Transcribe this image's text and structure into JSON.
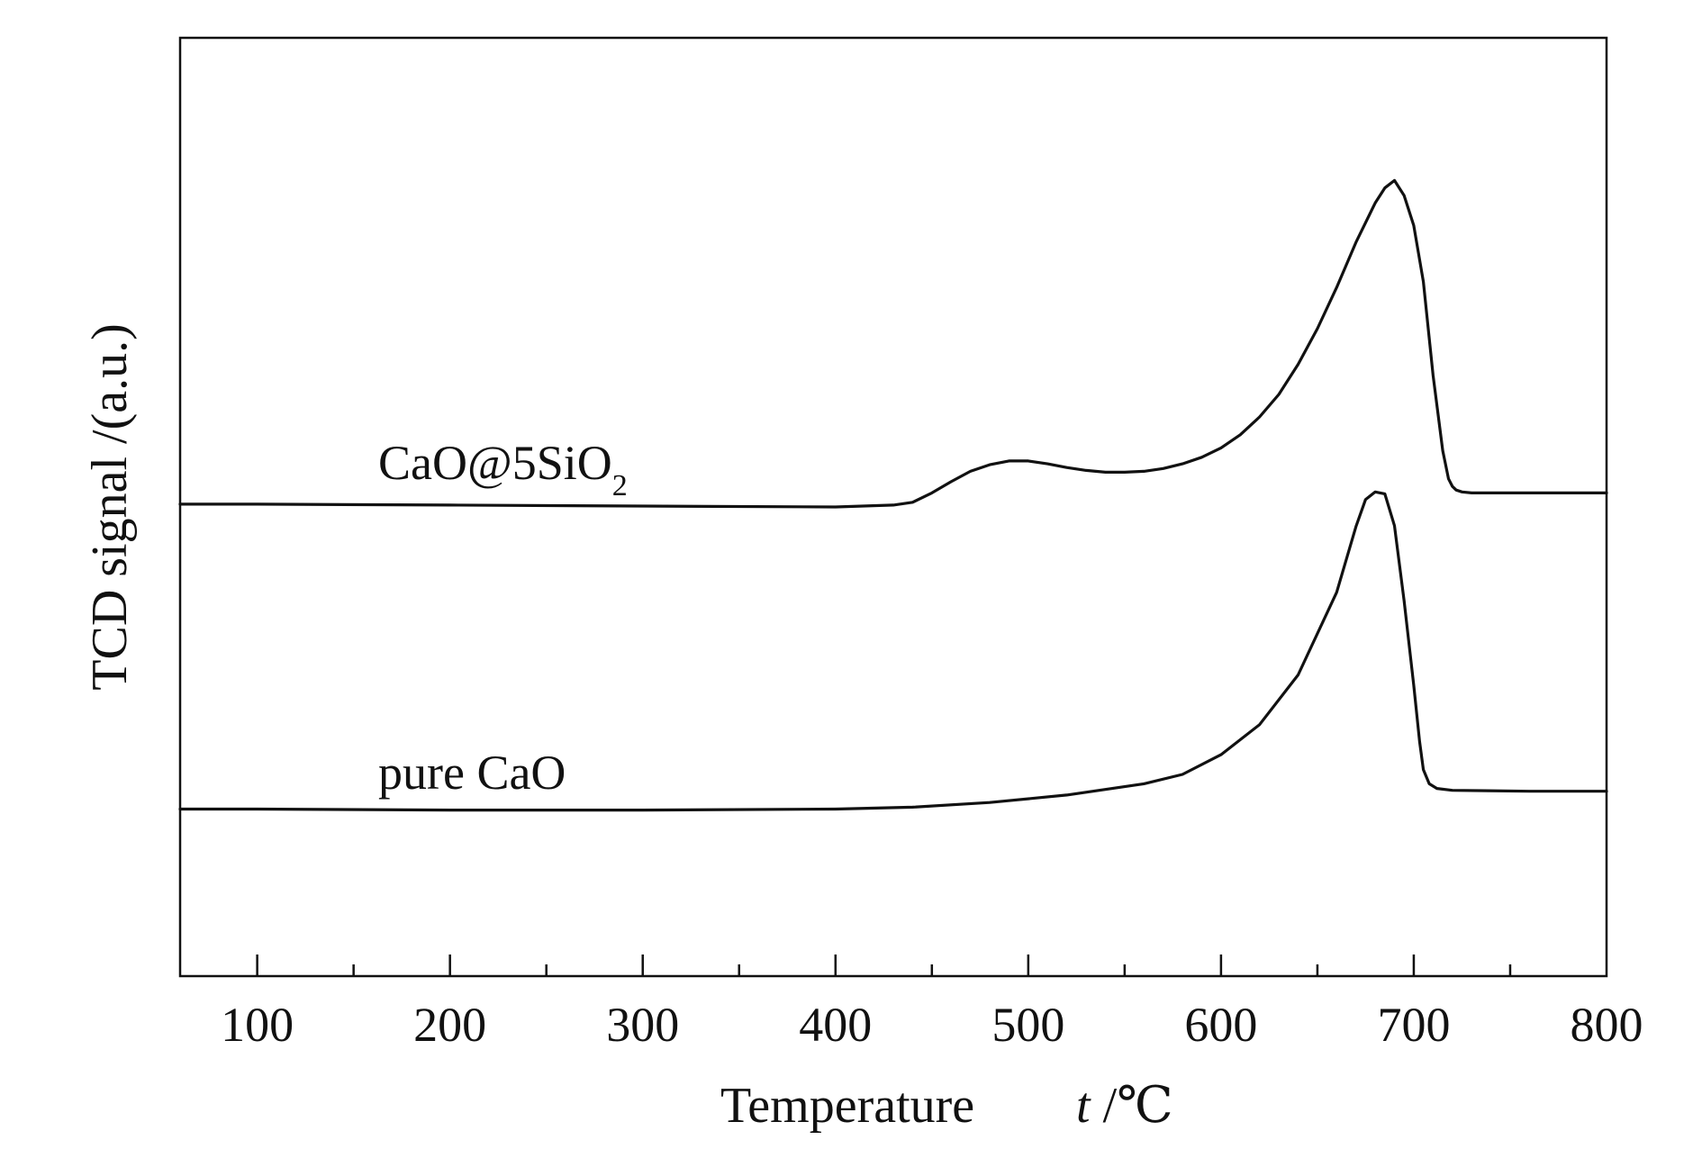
{
  "chart_data": {
    "type": "line",
    "xlabel": "Temperature",
    "xlabel_symbol": "t",
    "xlabel_unit": " /℃",
    "ylabel": "TCD signal /(a.u.)",
    "xlim": [
      60,
      800
    ],
    "ylim": [
      0,
      1
    ],
    "x_ticks": [
      100,
      200,
      300,
      400,
      500,
      600,
      700,
      800
    ],
    "x_tick_labels": [
      "100",
      "200",
      "300",
      "400",
      "500",
      "600",
      "700",
      "800"
    ],
    "x_minor_ticks": [
      150,
      250,
      350,
      450,
      550,
      650,
      750
    ],
    "grid": false,
    "legend": "none",
    "series": [
      {
        "name": "CaO@5SiO₂",
        "label_main": "CaO@5SiO",
        "label_sub": "2",
        "x": [
          60,
          100,
          200,
          300,
          400,
          430,
          440,
          450,
          460,
          470,
          480,
          490,
          500,
          510,
          520,
          530,
          540,
          550,
          560,
          570,
          580,
          590,
          600,
          610,
          620,
          630,
          640,
          650,
          660,
          670,
          680,
          685,
          690,
          695,
          700,
          705,
          710,
          715,
          718,
          720,
          722,
          725,
          730,
          740,
          760,
          800
        ],
        "values": [
          0.503,
          0.503,
          0.502,
          0.501,
          0.5,
          0.502,
          0.505,
          0.515,
          0.527,
          0.538,
          0.545,
          0.549,
          0.549,
          0.546,
          0.542,
          0.539,
          0.537,
          0.537,
          0.538,
          0.541,
          0.546,
          0.553,
          0.563,
          0.577,
          0.596,
          0.62,
          0.652,
          0.69,
          0.734,
          0.782,
          0.824,
          0.84,
          0.848,
          0.832,
          0.8,
          0.74,
          0.64,
          0.56,
          0.53,
          0.522,
          0.518,
          0.516,
          0.515,
          0.515,
          0.515,
          0.515
        ],
        "color": "#111111"
      },
      {
        "name": "pure CaO",
        "label_main": "pure CaO",
        "label_sub": "",
        "x": [
          60,
          100,
          200,
          300,
          400,
          440,
          480,
          520,
          560,
          580,
          600,
          620,
          640,
          660,
          670,
          675,
          680,
          685,
          690,
          695,
          700,
          703,
          705,
          708,
          712,
          720,
          760,
          800
        ],
        "values": [
          0.178,
          0.178,
          0.177,
          0.177,
          0.178,
          0.18,
          0.185,
          0.193,
          0.205,
          0.215,
          0.236,
          0.268,
          0.321,
          0.409,
          0.479,
          0.508,
          0.516,
          0.514,
          0.48,
          0.4,
          0.31,
          0.25,
          0.22,
          0.205,
          0.2,
          0.198,
          0.197,
          0.197
        ],
        "color": "#111111"
      }
    ]
  }
}
